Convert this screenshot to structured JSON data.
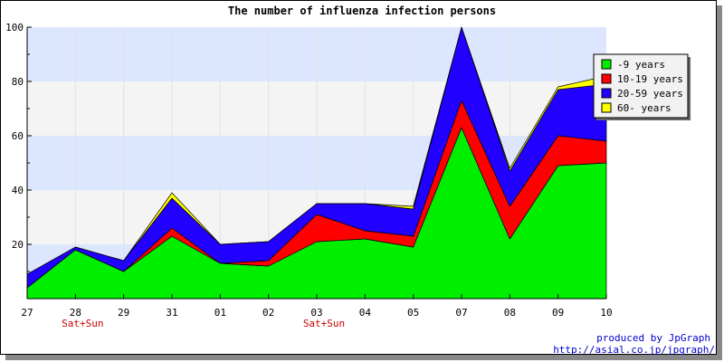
{
  "chart_data": {
    "type": "area",
    "stacked": true,
    "title": "The number of influenza infection persons",
    "xlabel": "",
    "ylabel": "",
    "categories": [
      "27",
      "28",
      "29",
      "31",
      "01",
      "02",
      "03",
      "04",
      "05",
      "07",
      "08",
      "09",
      "10"
    ],
    "weekend_labels": [
      {
        "category": "28",
        "text": "Sat+Sun"
      },
      {
        "category": "03",
        "text": "Sat+Sun"
      }
    ],
    "ylim": [
      0,
      100
    ],
    "yticks": [
      20,
      40,
      60,
      80,
      100
    ],
    "grid": true,
    "band_colors": [
      "#dde6ff",
      "#f4f4f4"
    ],
    "legend_position": "top-right",
    "series": [
      {
        "name": "-9 years",
        "color": "#00ee00",
        "values": [
          4,
          18,
          10,
          23,
          13,
          12,
          21,
          22,
          19,
          63,
          22,
          49,
          50
        ]
      },
      {
        "name": "10-19 years",
        "color": "#ff0000",
        "values": [
          0,
          0,
          0,
          3,
          0,
          2,
          10,
          3,
          4,
          10,
          12,
          11,
          8
        ]
      },
      {
        "name": "20-59 years",
        "color": "#2200ff",
        "values": [
          5,
          1,
          4,
          11,
          7,
          7,
          4,
          10,
          10,
          27,
          13,
          17,
          21
        ]
      },
      {
        "name": "60- years",
        "color": "#ffff00",
        "values": [
          0,
          0,
          0,
          2,
          0,
          0,
          0,
          0,
          1,
          0,
          1,
          1,
          3
        ]
      }
    ]
  },
  "credits": {
    "line1": "produced by JpGraph",
    "line2": "http://asial.co.jp/jpgraph/"
  }
}
